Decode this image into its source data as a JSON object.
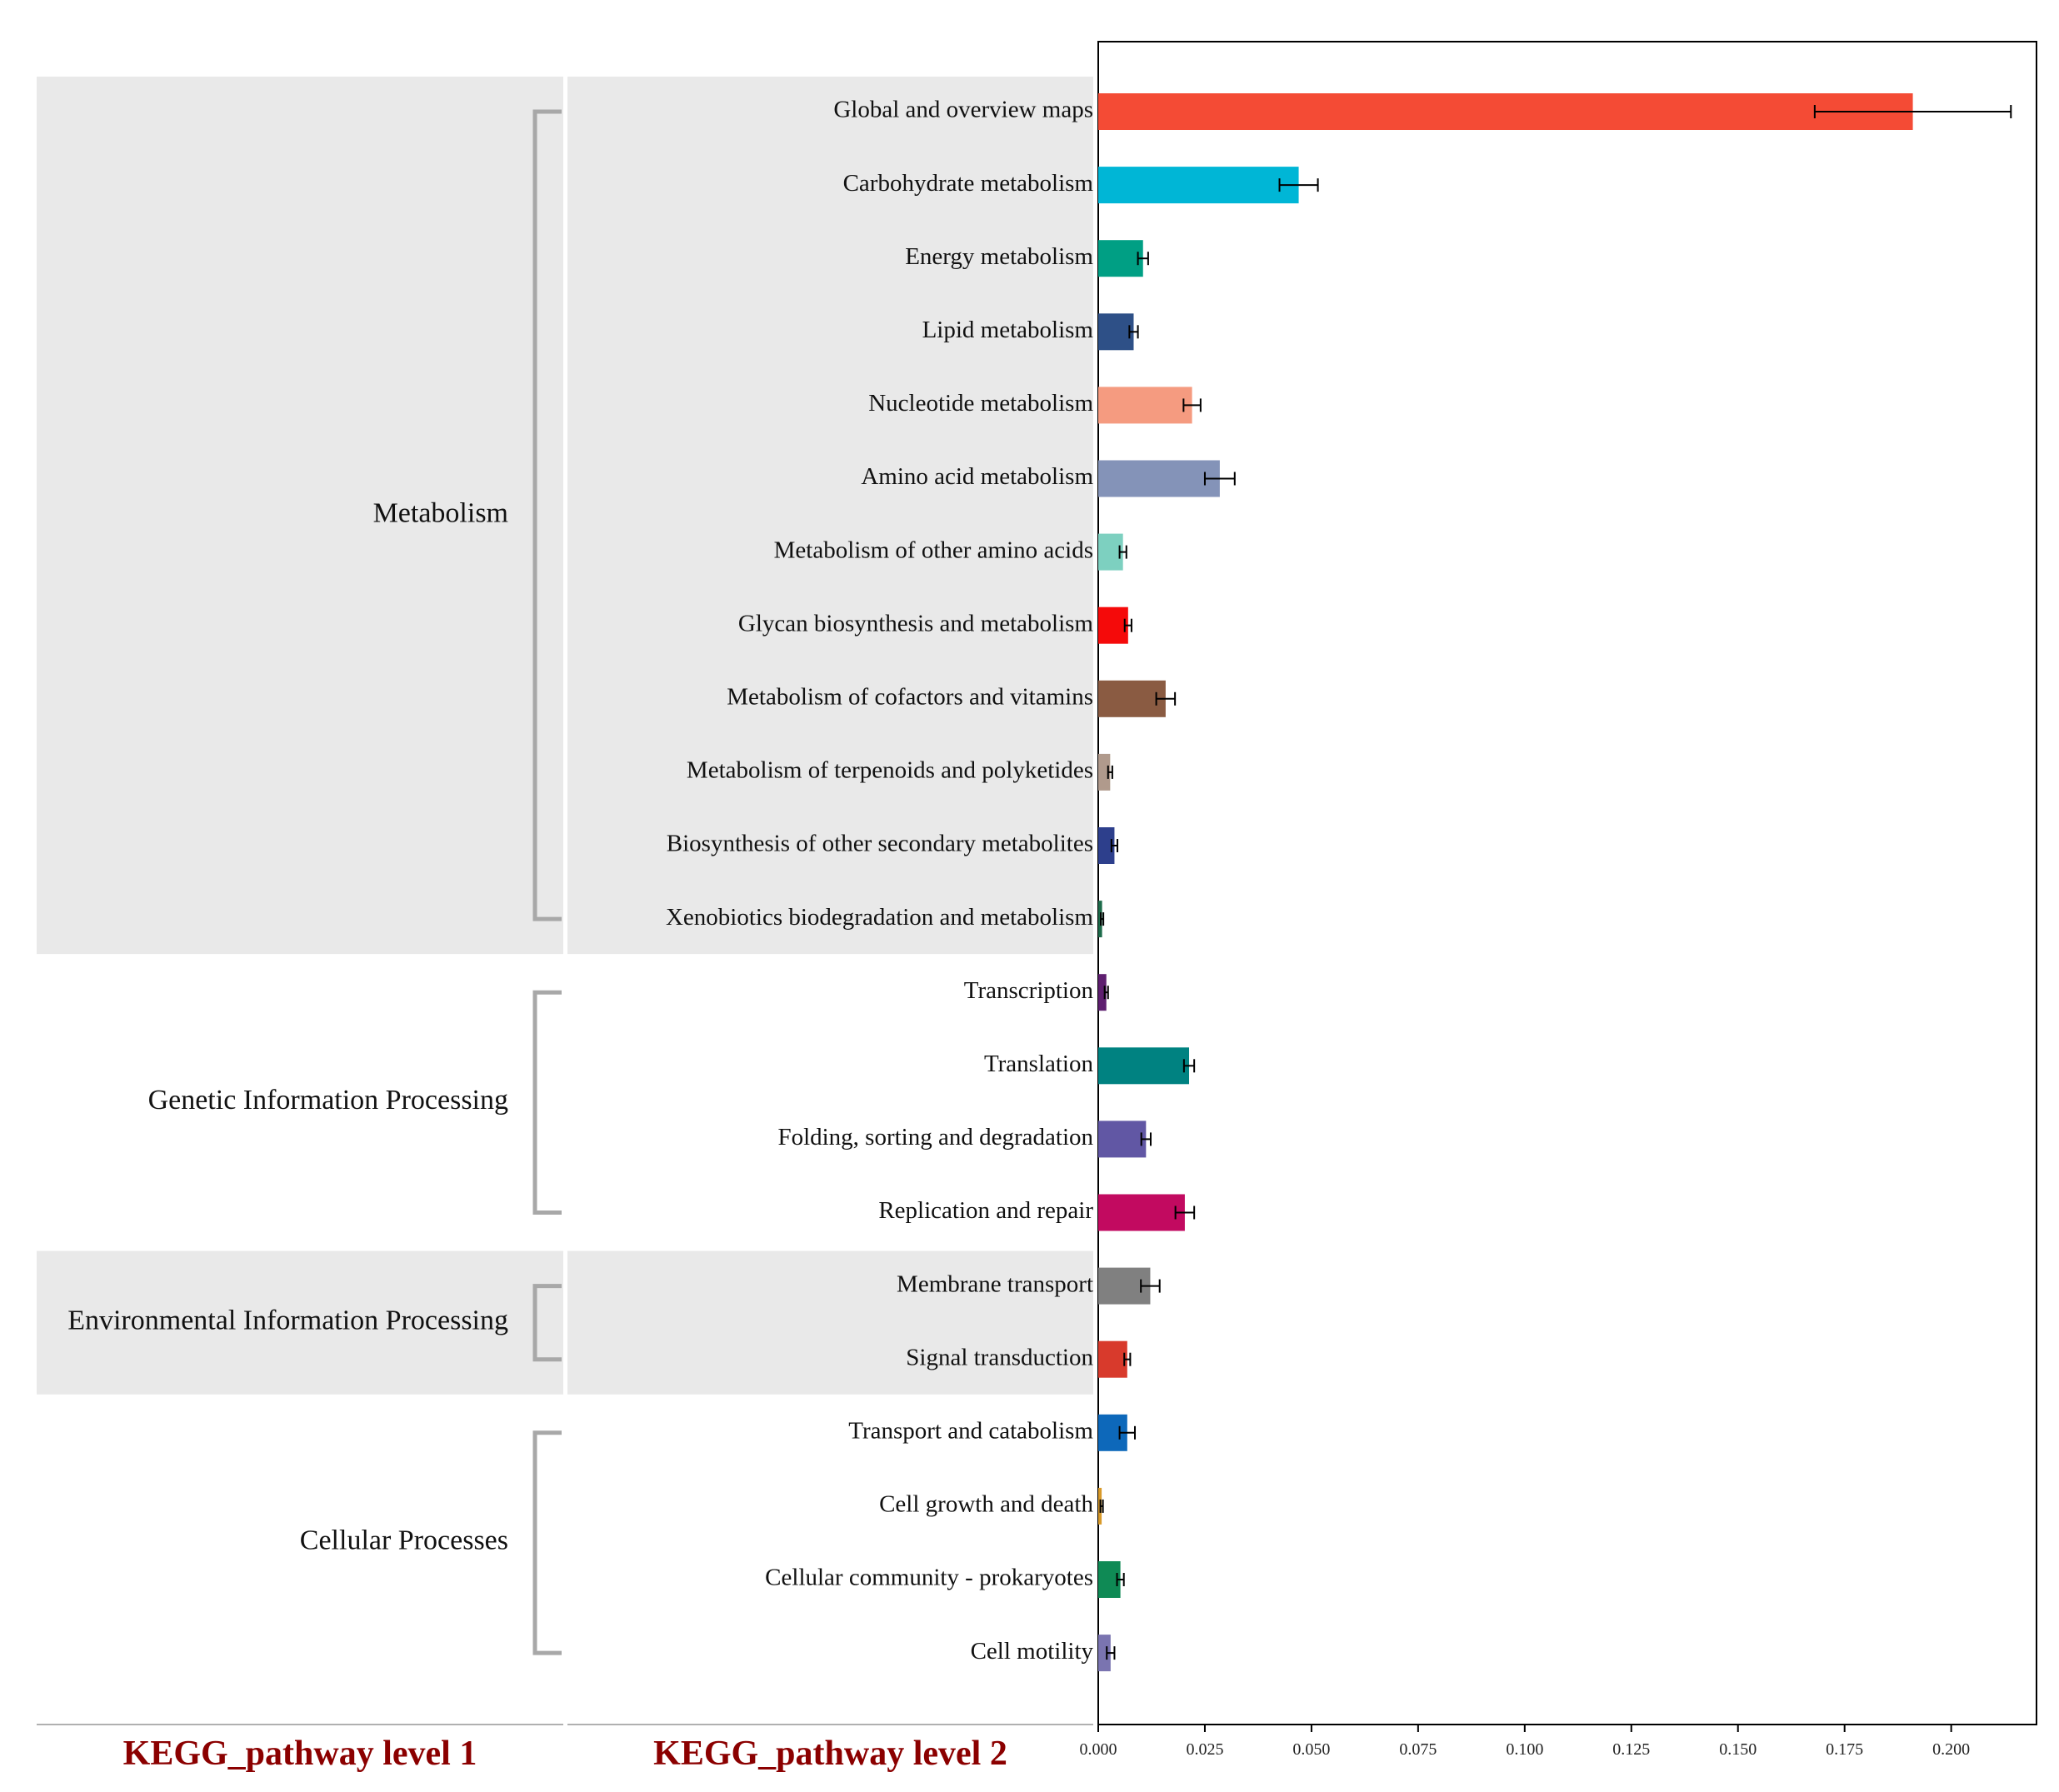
{
  "chart_data": {
    "type": "bar",
    "orientation": "horizontal",
    "xlim": [
      0,
      0.22
    ],
    "x_ticks": [
      "0.000",
      "0.025",
      "0.050",
      "0.075",
      "0.100",
      "0.125",
      "0.150",
      "0.175",
      "0.200"
    ],
    "x_tick_values": [
      0,
      0.025,
      0.05,
      0.075,
      0.1,
      0.125,
      0.15,
      0.175,
      0.2
    ],
    "footer_labels": {
      "level1": "KEGG_pathway level 1",
      "level2": "KEGG_pathway level 2",
      "color": "#8b0000"
    },
    "groups": [
      {
        "name": "Metabolism",
        "shaded": true,
        "categories": [
          {
            "label": "Global and overview maps",
            "value": 0.191,
            "error": 0.023,
            "color": "#f44b35"
          },
          {
            "label": "Carbohydrate metabolism",
            "value": 0.047,
            "error": 0.0045,
            "color": "#00b6d6"
          },
          {
            "label": "Energy metabolism",
            "value": 0.0105,
            "error": 0.0012,
            "color": "#009f84"
          },
          {
            "label": "Lipid metabolism",
            "value": 0.0083,
            "error": 0.001,
            "color": "#2e5087"
          },
          {
            "label": "Nucleotide metabolism",
            "value": 0.022,
            "error": 0.002,
            "color": "#f59b80"
          },
          {
            "label": "Amino acid metabolism",
            "value": 0.0285,
            "error": 0.0035,
            "color": "#8493b8"
          },
          {
            "label": "Metabolism of other amino acids",
            "value": 0.0058,
            "error": 0.0008,
            "color": "#7dd0c0"
          },
          {
            "label": "Glycan biosynthesis and metabolism",
            "value": 0.007,
            "error": 0.0008,
            "color": "#f50a0a"
          },
          {
            "label": "Metabolism of cofactors and vitamins",
            "value": 0.0158,
            "error": 0.0022,
            "color": "#8a5b42"
          },
          {
            "label": "Metabolism of terpenoids and polyketides",
            "value": 0.0028,
            "error": 0.0005,
            "color": "#b09a8c"
          },
          {
            "label": "Biosynthesis of other secondary metabolites",
            "value": 0.0038,
            "error": 0.0007,
            "color": "#2d3f8c"
          },
          {
            "label": "Xenobiotics biodegradation and metabolism",
            "value": 0.0009,
            "error": 0.0003,
            "color": "#1d6b4a"
          }
        ]
      },
      {
        "name": "Genetic Information Processing",
        "shaded": false,
        "categories": [
          {
            "label": "Transcription",
            "value": 0.0019,
            "error": 0.0004,
            "color": "#5e1e6f"
          },
          {
            "label": "Translation",
            "value": 0.0213,
            "error": 0.0012,
            "color": "#008281"
          },
          {
            "label": "Folding, sorting and degradation",
            "value": 0.0112,
            "error": 0.0011,
            "color": "#6157a4"
          },
          {
            "label": "Replication and repair",
            "value": 0.0203,
            "error": 0.0022,
            "color": "#c20a60"
          }
        ]
      },
      {
        "name": "Environmental Information Processing",
        "shaded": true,
        "categories": [
          {
            "label": "Membrane transport",
            "value": 0.0122,
            "error": 0.0022,
            "color": "#808080"
          },
          {
            "label": "Signal transduction",
            "value": 0.0068,
            "error": 0.0007,
            "color": "#d83a2c"
          }
        ]
      },
      {
        "name": "Cellular Processes",
        "shaded": false,
        "categories": [
          {
            "label": "Transport and catabolism",
            "value": 0.0068,
            "error": 0.0018,
            "color": "#0d68ba"
          },
          {
            "label": "Cell growth and death",
            "value": 0.0008,
            "error": 0.0003,
            "color": "#d89a2a"
          },
          {
            "label": "Cellular community - prokaryotes",
            "value": 0.0052,
            "error": 0.0008,
            "color": "#0f8a55"
          },
          {
            "label": "Cell motility",
            "value": 0.0029,
            "error": 0.0009,
            "color": "#7a74b0"
          }
        ]
      }
    ]
  }
}
